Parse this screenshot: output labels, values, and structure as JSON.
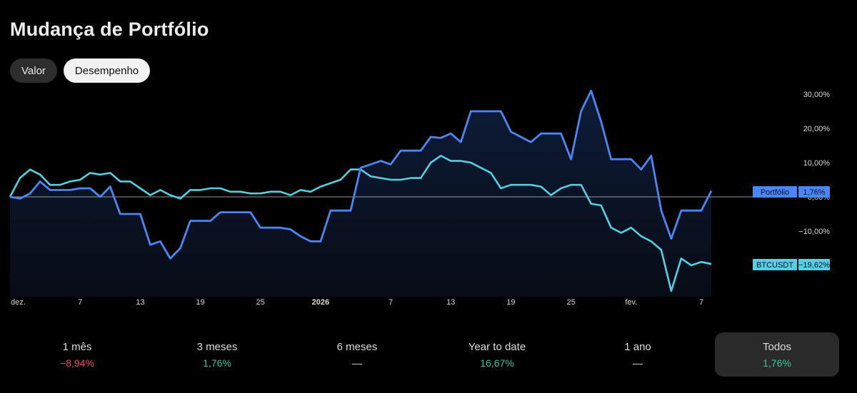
{
  "title": "Mudança de Portfólio",
  "toggle": {
    "valor": "Valor",
    "desempenho": "Desempenho"
  },
  "colors": {
    "portfolio": "#4c86f2",
    "btc": "#55d0e0",
    "positive": "#35c6a3",
    "negative": "#f2515e"
  },
  "periods": [
    {
      "label": "1 mês",
      "value": "−8,94%",
      "tone": "neg",
      "active": false
    },
    {
      "label": "3 meses",
      "value": "1,76%",
      "tone": "pos",
      "active": false
    },
    {
      "label": "6 meses",
      "value": "—",
      "tone": "neu",
      "active": false
    },
    {
      "label": "Year to date",
      "value": "16,67%",
      "tone": "pos",
      "active": false
    },
    {
      "label": "1 ano",
      "value": "—",
      "tone": "neu",
      "active": false
    },
    {
      "label": "Todos",
      "value": "1,76%",
      "tone": "pos",
      "active": true
    }
  ],
  "chart_data": {
    "type": "line",
    "title": "",
    "xlabel": "",
    "ylabel": "",
    "y_unit": "%",
    "ylim": [
      -27,
      32
    ],
    "y_ticks": [
      "30,00%",
      "20,00%",
      "10,00%",
      "0,00%",
      "−10,00%"
    ],
    "x_tick_labels": [
      "dez.",
      "7",
      "13",
      "19",
      "25",
      "2026",
      "7",
      "13",
      "19",
      "25",
      "fev.",
      "7"
    ],
    "x_tick_days": [
      0,
      7,
      13,
      19,
      25,
      31,
      38,
      44,
      50,
      56,
      62,
      69
    ],
    "grid": false,
    "legend": "right-axis-labels",
    "series": [
      {
        "name": "Portfólio",
        "last_label": "1,76%",
        "x": [
          0,
          1,
          2,
          3,
          4,
          5,
          6,
          7,
          8,
          9,
          10,
          11,
          12,
          13,
          14,
          15,
          16,
          17,
          18,
          19,
          20,
          21,
          22,
          23,
          24,
          25,
          26,
          27,
          28,
          29,
          30,
          31,
          32,
          33,
          34,
          35,
          36,
          37,
          38,
          39,
          40,
          41,
          42,
          43,
          44,
          45,
          46,
          47,
          48,
          49,
          50,
          51,
          52,
          53,
          54,
          55,
          56,
          57,
          58,
          59,
          60,
          61,
          62,
          63,
          64,
          65,
          66,
          67,
          68,
          69,
          70
        ],
        "y": [
          0,
          -0.5,
          1,
          4.5,
          2,
          2,
          2,
          2.5,
          2.5,
          0,
          3,
          -5,
          -5,
          -5,
          -14,
          -13,
          -18,
          -15,
          -7,
          -7,
          -7,
          -4.5,
          -4.5,
          -4.5,
          -4.5,
          -9,
          -9,
          -9,
          -9.5,
          -11.5,
          -13,
          -13,
          -4,
          -4,
          -4,
          8.5,
          9.5,
          10.5,
          9.5,
          13.5,
          13.5,
          13.5,
          17.5,
          17.2,
          18.5,
          16,
          25,
          25,
          25,
          25,
          19,
          17.5,
          16,
          18.5,
          18.5,
          18.5,
          11,
          25,
          31,
          22,
          11,
          11,
          11,
          8,
          12,
          -4,
          -12.2,
          -4,
          -4,
          -4,
          1.76
        ]
      },
      {
        "name": "BTCUSDT",
        "last_label": "−19,62%",
        "x": [
          0,
          1,
          2,
          3,
          4,
          5,
          6,
          7,
          8,
          9,
          10,
          11,
          12,
          13,
          14,
          15,
          16,
          17,
          18,
          19,
          20,
          21,
          22,
          23,
          24,
          25,
          26,
          27,
          28,
          29,
          30,
          31,
          32,
          33,
          34,
          35,
          36,
          37,
          38,
          39,
          40,
          41,
          42,
          43,
          44,
          45,
          46,
          47,
          48,
          49,
          50,
          51,
          52,
          53,
          54,
          55,
          56,
          57,
          58,
          59,
          60,
          61,
          62,
          63,
          64,
          65,
          66,
          67,
          68,
          69,
          70
        ],
        "y": [
          0,
          5.5,
          8,
          6.5,
          3.5,
          3.5,
          4.5,
          5,
          7,
          6.5,
          7,
          4.5,
          4.5,
          2.5,
          0.5,
          2,
          0.5,
          -0.5,
          2,
          2,
          2.5,
          2.5,
          1.5,
          1.5,
          1,
          1,
          1.5,
          1.5,
          0.5,
          2,
          1.5,
          3,
          4,
          5,
          8,
          8,
          6,
          5.5,
          5,
          5,
          5.5,
          5.5,
          10,
          12,
          10.5,
          10.5,
          10,
          8.5,
          7,
          2.5,
          3.5,
          3.5,
          3.5,
          3,
          0.5,
          2.5,
          3.5,
          3.5,
          -2,
          -2.5,
          -9,
          -10.5,
          -9,
          -11.5,
          -13,
          -15.5,
          -27.5,
          -18,
          -20,
          -19,
          -19.62
        ]
      }
    ]
  }
}
